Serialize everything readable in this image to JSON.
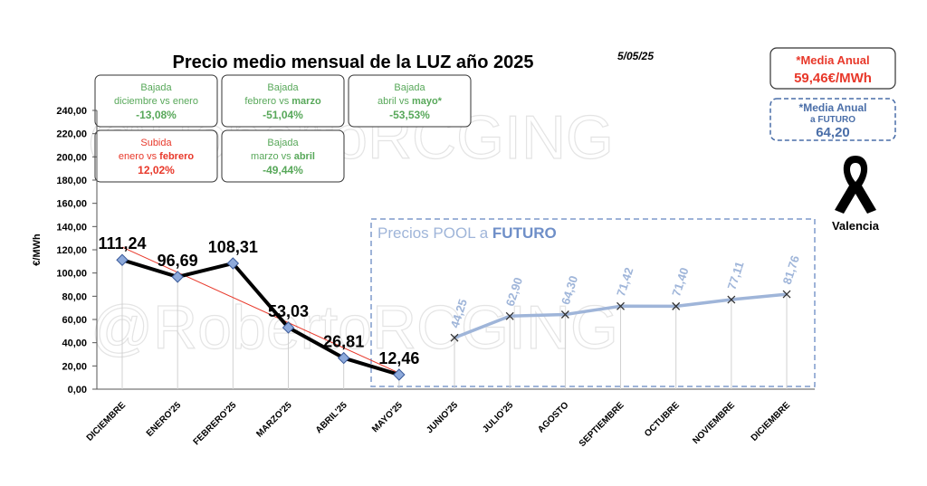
{
  "chart_data": {
    "type": "line",
    "title": "Precio medio mensual de la LUZ año 2025",
    "date": "5/05/25",
    "watermark": "@RobertoRCGING",
    "ylabel": "€/MWh",
    "categories": [
      "DICIEMBRE",
      "ENERO'25",
      "FEBRERO'25",
      "MARZO'25",
      "ABRIL'25",
      "MAYO'25",
      "JUNIO'25",
      "JULIO'25",
      "AGOSTO",
      "SEPTIEMBRE",
      "OCTUBRE",
      "NOVIEMBRE",
      "DICIEMBRE"
    ],
    "series": [
      {
        "color": "#000000",
        "marker_color": "#8eaadb",
        "values": [
          111.24,
          96.69,
          108.31,
          53.03,
          26.81,
          12.46,
          null,
          null,
          null,
          null,
          null,
          null,
          null
        ],
        "value_labels": [
          "111,24",
          "96,69",
          "108,31",
          "53,03",
          "26,81",
          "12,46",
          null,
          null,
          null,
          null,
          null,
          null,
          null
        ]
      },
      {
        "color": "#9fb5d9",
        "values": [
          null,
          null,
          null,
          null,
          null,
          null,
          44.25,
          62.9,
          64.3,
          71.42,
          71.4,
          77.11,
          81.76
        ],
        "value_labels": [
          null,
          null,
          null,
          null,
          null,
          null,
          "44,25",
          "62,90",
          "64,30",
          "71,42",
          "71,40",
          "77,11",
          "81,76"
        ]
      }
    ],
    "trendline_color": "#e8382a",
    "ylim": [
      0,
      240
    ],
    "yticks": [
      {
        "value": 0,
        "label": "0,00"
      },
      {
        "value": 20,
        "label": "20,00"
      },
      {
        "value": 40,
        "label": "40,00"
      },
      {
        "value": 60,
        "label": "60,00"
      },
      {
        "value": 80,
        "label": "80,00"
      },
      {
        "value": 100,
        "label": "100,00"
      },
      {
        "value": 120,
        "label": "120,00"
      },
      {
        "value": 140,
        "label": "140,00"
      },
      {
        "value": 160,
        "label": "160,00"
      },
      {
        "value": 180,
        "label": "180,00"
      },
      {
        "value": 200,
        "label": "200,00"
      },
      {
        "value": 220,
        "label": "220,00"
      },
      {
        "value": 240,
        "label": "240,00"
      }
    ],
    "future_box": [
      "Precios POOL a ",
      "FUTURO"
    ],
    "annotations": [
      {
        "title": "Bajada",
        "line": [
          "diciembre vs enero"
        ],
        "value": "-13,08%",
        "color": "#58a85a"
      },
      {
        "title": "Bajada",
        "line": [
          "febrero vs ",
          "marzo"
        ],
        "value": "-51,04%",
        "color": "#58a85a"
      },
      {
        "title": "Bajada",
        "line": [
          "abril vs ",
          "mayo*"
        ],
        "value": "-53,53%",
        "color": "#58a85a"
      },
      {
        "title": "Subida",
        "line": [
          "enero vs ",
          "febrero"
        ],
        "value": "12,02%",
        "color": "#e8382a"
      },
      {
        "title": "Bajada",
        "line": [
          "marzo vs ",
          "abril"
        ],
        "value": "-49,44%",
        "color": "#58a85a"
      }
    ],
    "annual": {
      "label": "*Media Anual",
      "value": "59,46€/MWh",
      "color": "#e8382a"
    },
    "future_annual": {
      "label": "*Media Anual",
      "label2": "a FUTURO",
      "value": "64,20",
      "color": "#4a6ea8"
    },
    "location": "Valencia"
  }
}
